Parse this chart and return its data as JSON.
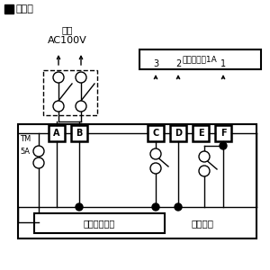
{
  "title": "結線図",
  "power_label1": "電源",
  "power_label2": "AC100V",
  "fan_label": "換気扇最切1A",
  "terminal_labels": [
    "A",
    "B",
    "C",
    "D",
    "E",
    "F"
  ],
  "tm_label": "TM",
  "fuse_label": "5A",
  "numbers": [
    "3",
    "2",
    "1"
  ],
  "bottom_box_label": "電子制御装置",
  "timer_label": "タイマー",
  "bg_color": "#ffffff",
  "lc": "#000000"
}
